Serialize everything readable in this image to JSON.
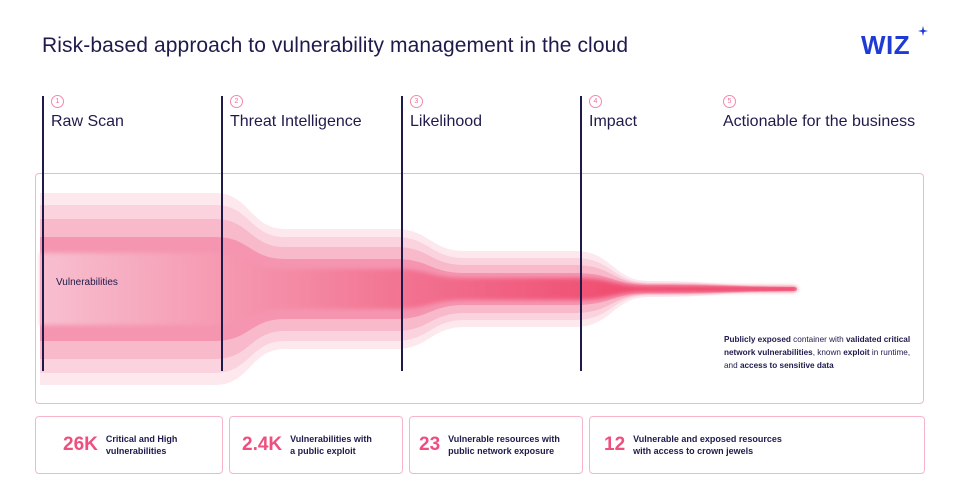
{
  "title": "Risk-based approach to vulnerability management in the cloud",
  "logo": {
    "text": "WIZ",
    "star_icon": "sparkle-icon"
  },
  "stages": [
    {
      "number": "1",
      "label": "Raw Scan"
    },
    {
      "number": "2",
      "label": "Threat Intelligence"
    },
    {
      "number": "3",
      "label": "Likelihood"
    },
    {
      "number": "4",
      "label": "Impact"
    },
    {
      "number": "5",
      "label": "Actionable for the business"
    }
  ],
  "funnel_label": "Vulnerabilities",
  "callout": {
    "parts": [
      {
        "text": "Publicly exposed",
        "bold": true
      },
      {
        "text": " container with ",
        "bold": false
      },
      {
        "text": "validated critical network vulnerabilities",
        "bold": true
      },
      {
        "text": ", known ",
        "bold": false
      },
      {
        "text": "exploit",
        "bold": true
      },
      {
        "text": " in runtime, and ",
        "bold": false
      },
      {
        "text": "access to sensitive data",
        "bold": true
      }
    ]
  },
  "stats": [
    {
      "value": "26K",
      "desc_line1": "Critical and High",
      "desc_line2": "vulnerabilities"
    },
    {
      "value": "2.4K",
      "desc_line1": "Vulnerabilities with",
      "desc_line2": "a public exploit"
    },
    {
      "value": "23",
      "desc_line1": "Vulnerable resources with",
      "desc_line2": "public network exposure"
    },
    {
      "value": "12",
      "desc_line1": "Vulnerable and exposed resources",
      "desc_line2": "with access to crown jewels"
    }
  ],
  "colors": {
    "accent": "#ef4f7f",
    "funnel_core": "#f0406a",
    "funnel_light": "#fde6ec",
    "text": "#1e1b4b",
    "logo": "#1f3bd6",
    "border": "#f7b6c8"
  }
}
